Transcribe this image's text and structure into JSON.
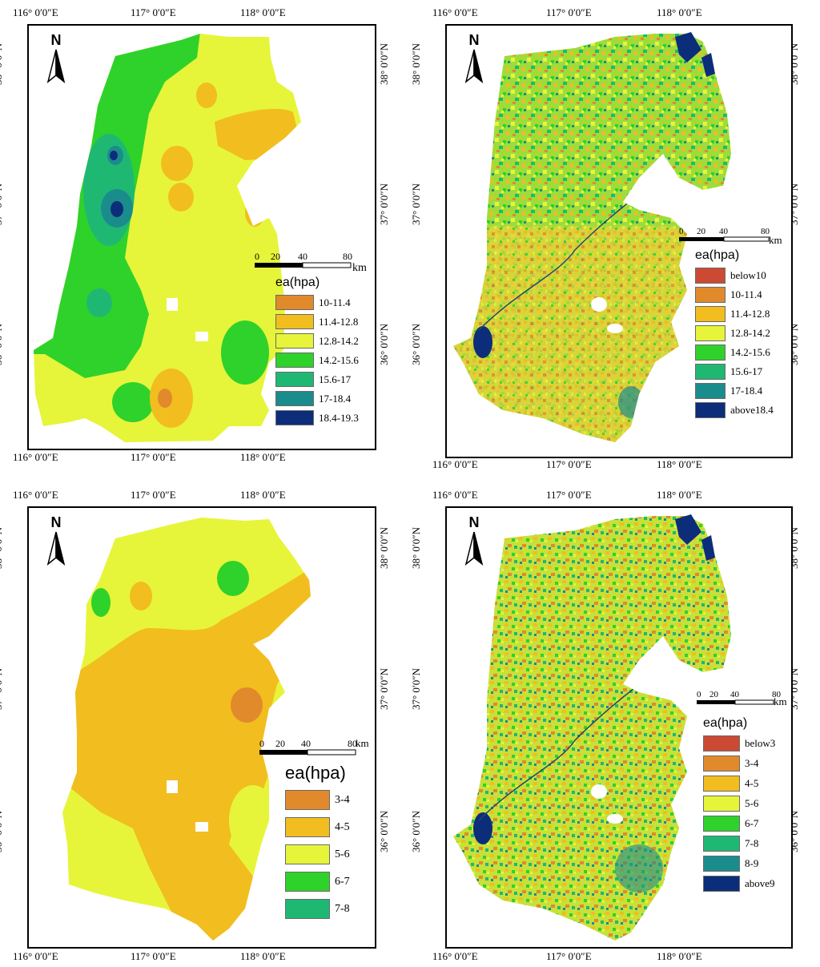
{
  "panels": [
    {
      "id": "top-left",
      "x_ticks": [
        "116° 0′0″E",
        "117° 0′0″E",
        "118° 0′0″E"
      ],
      "y_ticks": [
        "38° 0′0″N",
        "37° 0′0″N",
        "36° 0′0″N"
      ],
      "north": "N",
      "scale": {
        "labels": [
          "0",
          "20",
          "40",
          "80"
        ],
        "unit": "km"
      },
      "legend_title": "ea(hpa)",
      "legend": [
        {
          "label": "10-11.4",
          "color": "#e08a2c"
        },
        {
          "label": "11.4-12.8",
          "color": "#f2bd1e"
        },
        {
          "label": "12.8-14.2",
          "color": "#e6f53a"
        },
        {
          "label": "14.2-15.6",
          "color": "#2fd22a"
        },
        {
          "label": "15.6-17",
          "color": "#1fb873"
        },
        {
          "label": "17-18.4",
          "color": "#1b8c8c"
        },
        {
          "label": "18.4-19.3",
          "color": "#0c2d7a"
        }
      ]
    },
    {
      "id": "top-right",
      "x_ticks": [
        "116° 0′0″E",
        "117° 0′0″E",
        "118° 0′0″E"
      ],
      "y_ticks": [
        "38° 0′0″N",
        "37° 0′0″N",
        "36° 0′0″N"
      ],
      "north": "N",
      "scale": {
        "labels": [
          "0",
          "20",
          "40",
          "80"
        ],
        "unit": "km"
      },
      "legend_title": "ea(hpa)",
      "legend": [
        {
          "label": "below10",
          "color": "#cc4a34"
        },
        {
          "label": "10-11.4",
          "color": "#e08a2c"
        },
        {
          "label": "11.4-12.8",
          "color": "#f2bd1e"
        },
        {
          "label": "12.8-14.2",
          "color": "#e6f53a"
        },
        {
          "label": "14.2-15.6",
          "color": "#2fd22a"
        },
        {
          "label": "15.6-17",
          "color": "#1fb873"
        },
        {
          "label": "17-18.4",
          "color": "#1b8c8c"
        },
        {
          "label": "above18.4",
          "color": "#0c2d7a"
        }
      ]
    },
    {
      "id": "bottom-left",
      "x_ticks": [
        "116° 0′0″E",
        "117° 0′0″E",
        "118° 0′0″E"
      ],
      "y_ticks": [
        "38° 0′0″N",
        "37° 0′0″N",
        "36° 0′0″N"
      ],
      "north": "N",
      "scale": {
        "labels": [
          "0",
          "20",
          "40",
          "80"
        ],
        "unit": "km"
      },
      "legend_title": "ea(hpa)",
      "legend": [
        {
          "label": "3-4",
          "color": "#e08a2c"
        },
        {
          "label": "4-5",
          "color": "#f2bd1e"
        },
        {
          "label": "5-6",
          "color": "#e6f53a"
        },
        {
          "label": "6-7",
          "color": "#2fd22a"
        },
        {
          "label": "7-8",
          "color": "#1fb873"
        }
      ]
    },
    {
      "id": "bottom-right",
      "x_ticks": [
        "116° 0′0″E",
        "117° 0′0″E",
        "118° 0′0″E"
      ],
      "y_ticks": [
        "38° 0′0″N",
        "37° 0′0″N",
        "36° 0′0″N"
      ],
      "north": "N",
      "scale": {
        "labels": [
          "0",
          "20",
          "40",
          "80"
        ],
        "unit": "km"
      },
      "legend_title": "ea(hpa)",
      "legend": [
        {
          "label": "below3",
          "color": "#cc4a34"
        },
        {
          "label": "3-4",
          "color": "#e08a2c"
        },
        {
          "label": "4-5",
          "color": "#f2bd1e"
        },
        {
          "label": "5-6",
          "color": "#e6f53a"
        },
        {
          "label": "6-7",
          "color": "#2fd22a"
        },
        {
          "label": "7-8",
          "color": "#1fb873"
        },
        {
          "label": "8-9",
          "color": "#1b8c8c"
        },
        {
          "label": "above9",
          "color": "#0c2d7a"
        }
      ]
    }
  ]
}
